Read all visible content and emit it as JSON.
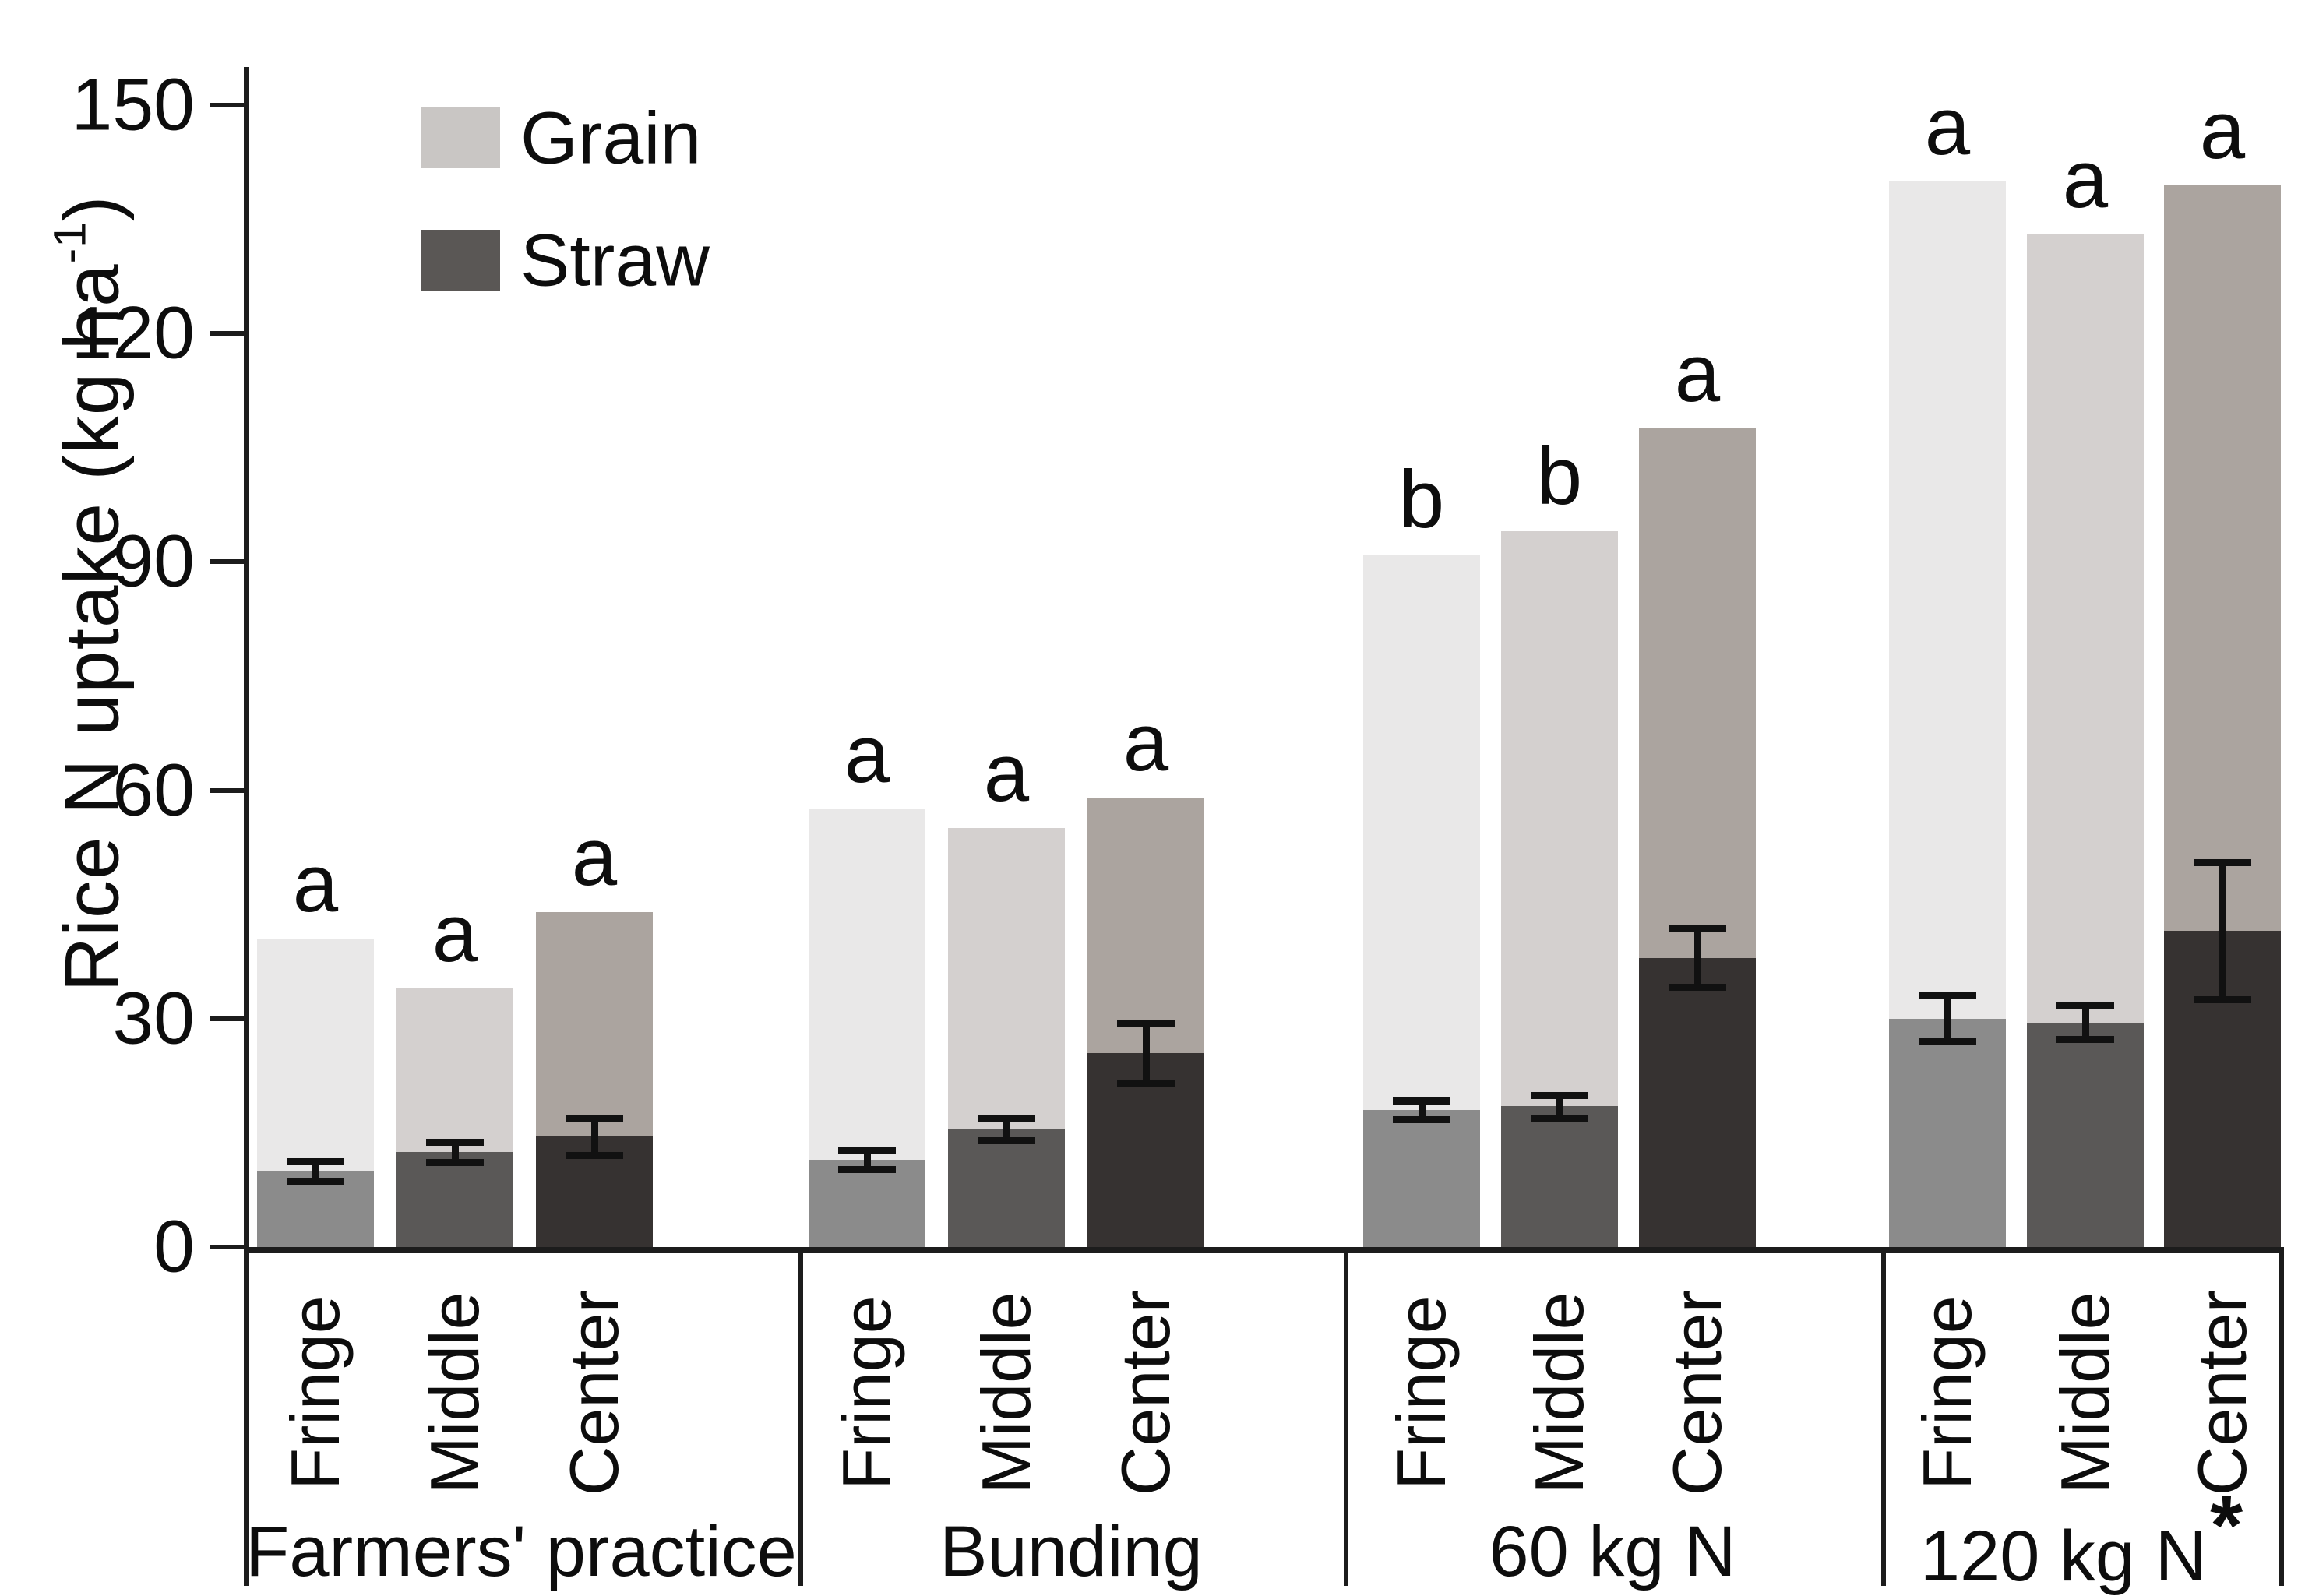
{
  "chart_data": {
    "type": "bar",
    "stacked": true,
    "title": "",
    "ylabel": "Rice N uptake (kg ha-1)",
    "ylabel_parts": {
      "pre": "Rice N uptake (kg ha",
      "sup": "-1",
      "post": ")"
    },
    "ylim": [
      0,
      150
    ],
    "yticks": [
      0,
      30,
      60,
      90,
      120,
      150
    ],
    "grid": false,
    "legend": {
      "position": "top-left",
      "entries": [
        {
          "name": "Grain",
          "swatch": "#c9c6c4"
        },
        {
          "name": "Straw",
          "swatch": "#5a5755"
        }
      ]
    },
    "stack_order": "Straw bottom, Grain top; error bars on Straw segment tops; letters above total bar",
    "groups": [
      {
        "label": "Farmers' practice",
        "bars": [
          {
            "position": "Fringe",
            "straw": 10,
            "grain": 30.5,
            "total": 40.5,
            "straw_err": 1.3,
            "letter": "a"
          },
          {
            "position": "Middle",
            "straw": 12.5,
            "grain": 21.5,
            "total": 34,
            "straw_err": 1.3,
            "letter": "a"
          },
          {
            "position": "Center",
            "straw": 14.5,
            "grain": 29.5,
            "total": 44,
            "straw_err": 2.4,
            "letter": "a"
          }
        ]
      },
      {
        "label": "Bunding",
        "bars": [
          {
            "position": "Fringe",
            "straw": 11.5,
            "grain": 46,
            "total": 57.5,
            "straw_err": 1.3,
            "letter": "a"
          },
          {
            "position": "Middle",
            "straw": 15.5,
            "grain": 39.5,
            "total": 55,
            "straw_err": 1.5,
            "letter": "a"
          },
          {
            "position": "Center",
            "straw": 25.5,
            "grain": 33.5,
            "total": 59,
            "straw_err": 4.0,
            "letter": "a"
          }
        ]
      },
      {
        "label": "60 kg N",
        "bars": [
          {
            "position": "Fringe",
            "straw": 18,
            "grain": 73,
            "total": 91,
            "straw_err": 1.2,
            "letter": "b"
          },
          {
            "position": "Middle",
            "straw": 18.5,
            "grain": 75.5,
            "total": 94,
            "straw_err": 1.5,
            "letter": "b"
          },
          {
            "position": "Center",
            "straw": 38,
            "grain": 69.5,
            "total": 107.5,
            "straw_err": 3.8,
            "letter": "a"
          }
        ]
      },
      {
        "label": "120 kg N",
        "marker": "*",
        "bars": [
          {
            "position": "Fringe",
            "straw": 30,
            "grain": 110,
            "total": 140,
            "straw_err": 3.0,
            "letter": "a"
          },
          {
            "position": "Middle",
            "straw": 29.5,
            "grain": 103.5,
            "total": 133,
            "straw_err": 2.2,
            "letter": "a"
          },
          {
            "position": "Center",
            "straw": 41.5,
            "grain": 98,
            "total": 139.5,
            "straw_err": 9.0,
            "letter": "a"
          }
        ]
      }
    ],
    "colors": {
      "grain_by_position": [
        "#e9e8e8",
        "#d4d0cf",
        "#aba49f"
      ],
      "straw_by_position": [
        "#8b8b8b",
        "#5a5857",
        "#363231"
      ],
      "axis": "#1c1c1c",
      "text": "#0d0d0d",
      "error_bar": "#111111"
    }
  }
}
